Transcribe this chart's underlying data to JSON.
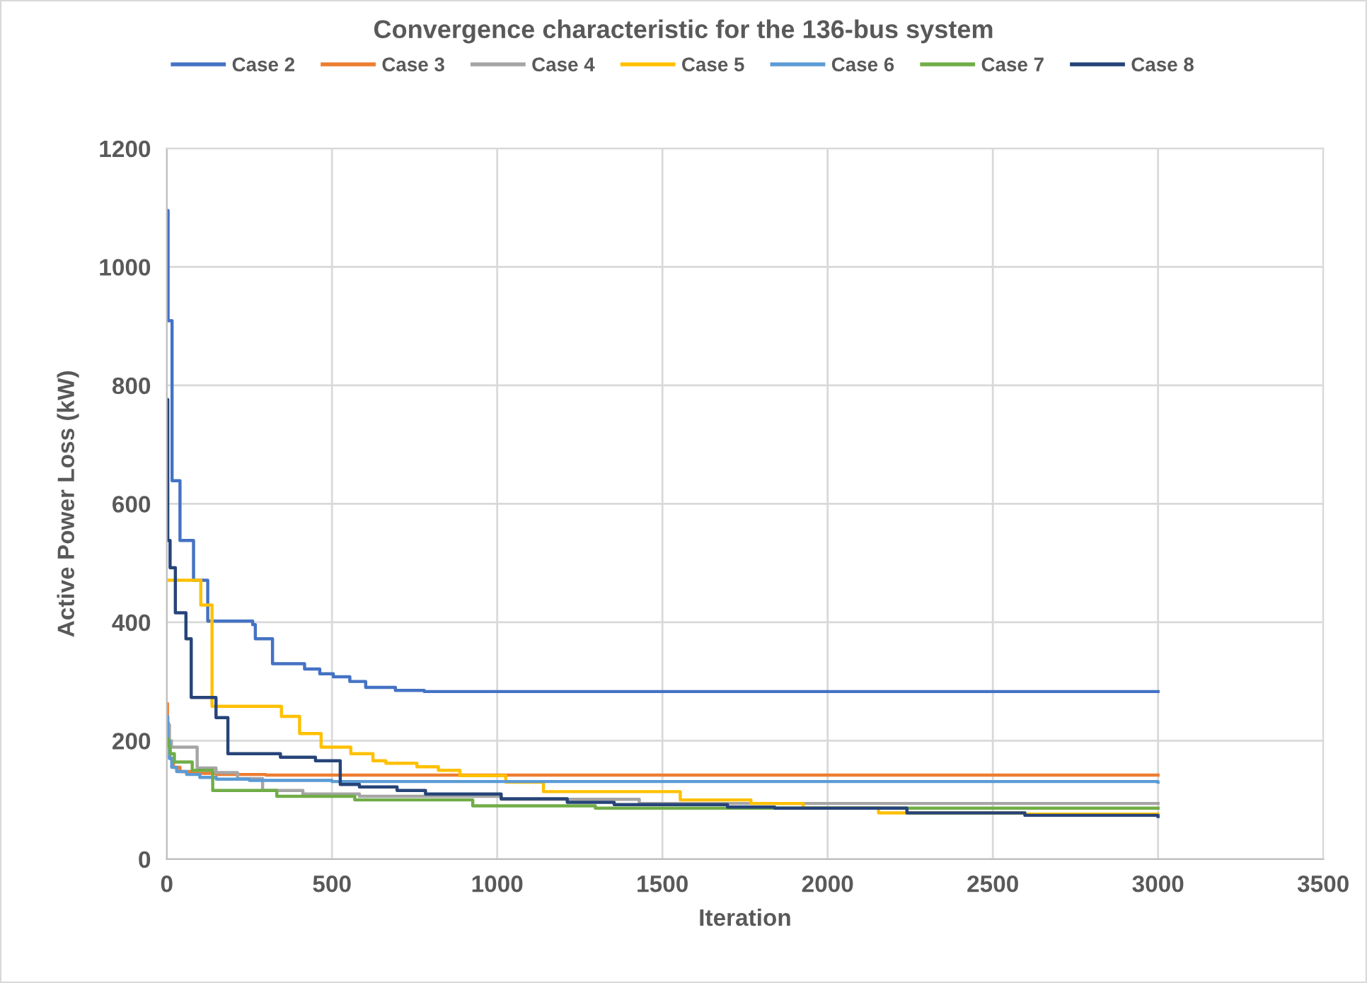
{
  "chart_data": {
    "type": "step",
    "title": "Convergence characteristic for the 136-bus system",
    "xlabel": "Iteration",
    "ylabel": "Active Power Loss (kW)",
    "xlim": [
      0,
      3500
    ],
    "xticks": [
      0,
      500,
      1000,
      1500,
      2000,
      2500,
      3000,
      3500
    ],
    "ylim": [
      0,
      1200
    ],
    "yticks": [
      0,
      200,
      400,
      600,
      800,
      1000,
      1200
    ],
    "grid": true,
    "legend": "top",
    "line_style": "solid",
    "series": [
      {
        "name": "Case 2",
        "color": "#4472c4",
        "x": [
          0,
          4,
          16,
          40,
          81,
          124,
          260,
          268,
          320,
          417,
          463,
          504,
          554,
          602,
          692,
          779,
          3000
        ],
        "values": [
          1095,
          909,
          639,
          538,
          471,
          402,
          396,
          372,
          330,
          321,
          313,
          308,
          300,
          290,
          285,
          283,
          283
        ]
      },
      {
        "name": "Case 3",
        "color": "#ed7d31",
        "x": [
          0,
          2,
          5,
          10,
          20,
          40,
          80,
          150,
          300,
          3000
        ],
        "values": [
          263,
          230,
          195,
          170,
          155,
          148,
          145,
          143,
          142,
          142
        ]
      },
      {
        "name": "Case 4",
        "color": "#a5a5a5",
        "x": [
          0,
          8,
          14,
          92,
          149,
          214,
          290,
          412,
          583,
          1012,
          1430,
          3000
        ],
        "values": [
          227,
          200,
          189,
          154,
          146,
          136,
          116,
          110,
          106,
          101,
          94,
          94
        ]
      },
      {
        "name": "Case 5",
        "color": "#ffc000",
        "x": [
          0,
          103,
          137,
          347,
          402,
          467,
          557,
          624,
          663,
          757,
          822,
          887,
          1026,
          1140,
          1554,
          1768,
          1926,
          2154,
          2597,
          3000
        ],
        "values": [
          471,
          429,
          258,
          241,
          212,
          189,
          178,
          166,
          162,
          156,
          150,
          141,
          130,
          114,
          100,
          94,
          86,
          78,
          76,
          76
        ]
      },
      {
        "name": "Case 6",
        "color": "#5b9bd5",
        "x": [
          0,
          3,
          8,
          15,
          30,
          60,
          100,
          150,
          250,
          500,
          3000
        ],
        "values": [
          241,
          200,
          170,
          155,
          148,
          143,
          138,
          135,
          133,
          131,
          130
        ]
      },
      {
        "name": "Case 7",
        "color": "#70ad47",
        "x": [
          0,
          5,
          10,
          23,
          77,
          139,
          333,
          569,
          926,
          1297,
          3000
        ],
        "values": [
          203,
          190,
          178,
          164,
          150,
          116,
          106,
          100,
          90,
          86,
          86
        ]
      },
      {
        "name": "Case 8",
        "color": "#264478",
        "x": [
          0,
          3,
          10,
          26,
          58,
          74,
          149,
          185,
          344,
          450,
          525,
          583,
          697,
          783,
          1012,
          1212,
          1354,
          1697,
          1840,
          2240,
          2597,
          3000
        ],
        "values": [
          776,
          538,
          492,
          416,
          372,
          273,
          239,
          178,
          172,
          166,
          126,
          122,
          116,
          110,
          102,
          96,
          92,
          88,
          86,
          78,
          74,
          72
        ]
      }
    ]
  }
}
